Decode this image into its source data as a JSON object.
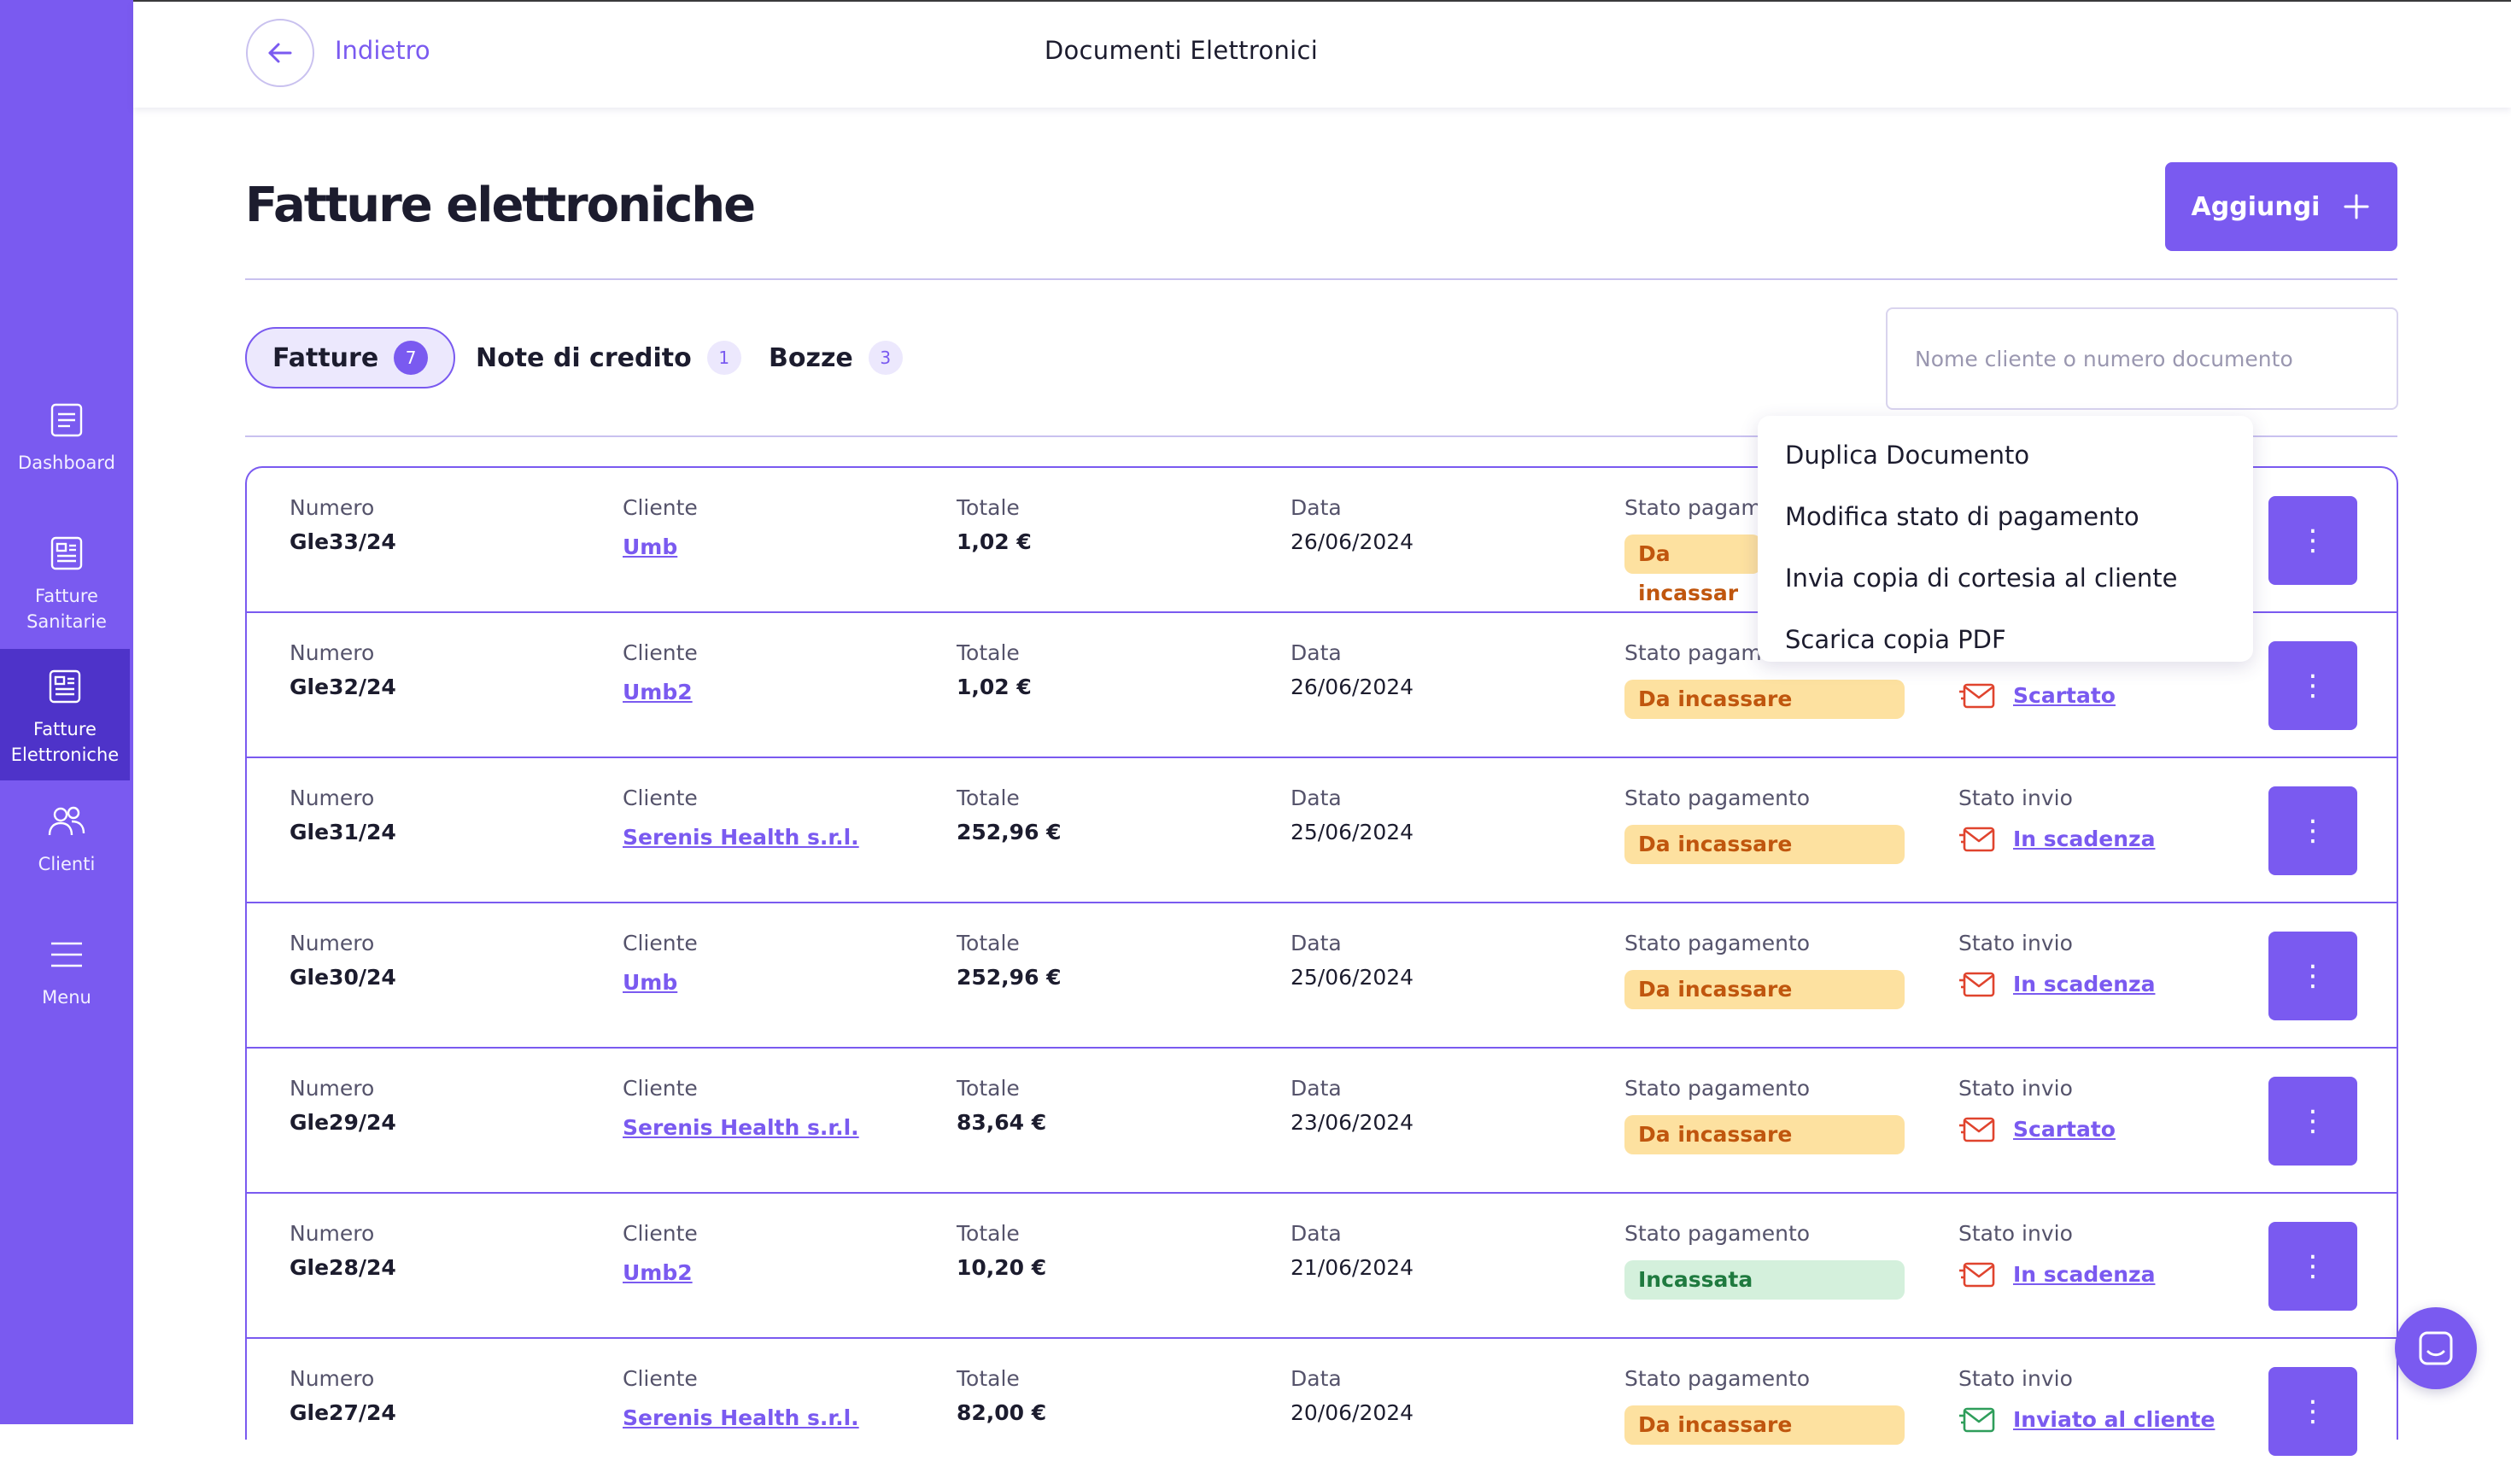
{
  "header": {
    "back_label": "Indietro",
    "title": "Documenti Elettronici"
  },
  "sidebar": {
    "items": [
      {
        "label_line1": "Dashboard",
        "label_line2": "",
        "icon": "dashboard-icon"
      },
      {
        "label_line1": "Fatture",
        "label_line2": "Sanitarie",
        "icon": "invoice-icon"
      },
      {
        "label_line1": "Fatture",
        "label_line2": "Elettroniche",
        "icon": "invoice-icon"
      },
      {
        "label_line1": "Clienti",
        "label_line2": "",
        "icon": "users-icon"
      },
      {
        "label_line1": "Menu",
        "label_line2": "",
        "icon": "menu-icon"
      }
    ]
  },
  "main": {
    "title": "Fatture elettroniche",
    "add_label": "Aggiungi",
    "tabs": [
      {
        "label": "Fatture",
        "count": "7"
      },
      {
        "label": "Note di credito",
        "count": "1"
      },
      {
        "label": "Bozze",
        "count": "3"
      }
    ],
    "search_placeholder": "Nome cliente o numero documento"
  },
  "table": {
    "labels": {
      "numero": "Numero",
      "cliente": "Cliente",
      "totale": "Totale",
      "data": "Data",
      "stato_pagamento": "Stato pagamento",
      "stato_pagamento_cut": "Stato pagam",
      "stato_invio": "Stato invio"
    },
    "rows": [
      {
        "numero": "Gle33/24",
        "cliente": "Umb",
        "totale": "1,02 €",
        "data": "26/06/2024",
        "pagamento": "Da incassare",
        "pagamento_cut": "Da incassar",
        "invio": "",
        "invio_status": "none"
      },
      {
        "numero": "Gle32/24",
        "cliente": "Umb2",
        "totale": "1,02 €",
        "data": "26/06/2024",
        "pagamento": "Da incassare",
        "invio": "Scartato",
        "invio_status": "error"
      },
      {
        "numero": "Gle31/24",
        "cliente": "Serenis Health s.r.l.",
        "totale": "252,96 €",
        "data": "25/06/2024",
        "pagamento": "Da incassare",
        "invio": "In scadenza",
        "invio_status": "error"
      },
      {
        "numero": "Gle30/24",
        "cliente": "Umb",
        "totale": "252,96 €",
        "data": "25/06/2024",
        "pagamento": "Da incassare",
        "invio": "In scadenza",
        "invio_status": "error"
      },
      {
        "numero": "Gle29/24",
        "cliente": "Serenis Health s.r.l.",
        "totale": "83,64 €",
        "data": "23/06/2024",
        "pagamento": "Da incassare",
        "invio": "Scartato",
        "invio_status": "error"
      },
      {
        "numero": "Gle28/24",
        "cliente": "Umb2",
        "totale": "10,20 €",
        "data": "21/06/2024",
        "pagamento": "Incassata",
        "invio": "In scadenza",
        "invio_status": "error"
      },
      {
        "numero": "Gle27/24",
        "cliente": "Serenis Health s.r.l.",
        "totale": "82,00 €",
        "data": "20/06/2024",
        "pagamento": "Da incassare",
        "invio": "Inviato al cliente",
        "invio_status": "ok"
      }
    ]
  },
  "dropdown": {
    "items": [
      "Duplica Documento",
      "Modifica stato di pagamento",
      "Invia copia di cortesia al cliente",
      "Scarica copia PDF"
    ]
  },
  "colors": {
    "brand": "#7a5af0",
    "brand_dark": "#4e33c9",
    "pending_bg": "#fde1a0",
    "pending_text": "#c0560e",
    "paid_bg": "#d4f0dc",
    "paid_text": "#1f7a3f",
    "error": "#e0442e",
    "ok": "#2f9e5b"
  }
}
